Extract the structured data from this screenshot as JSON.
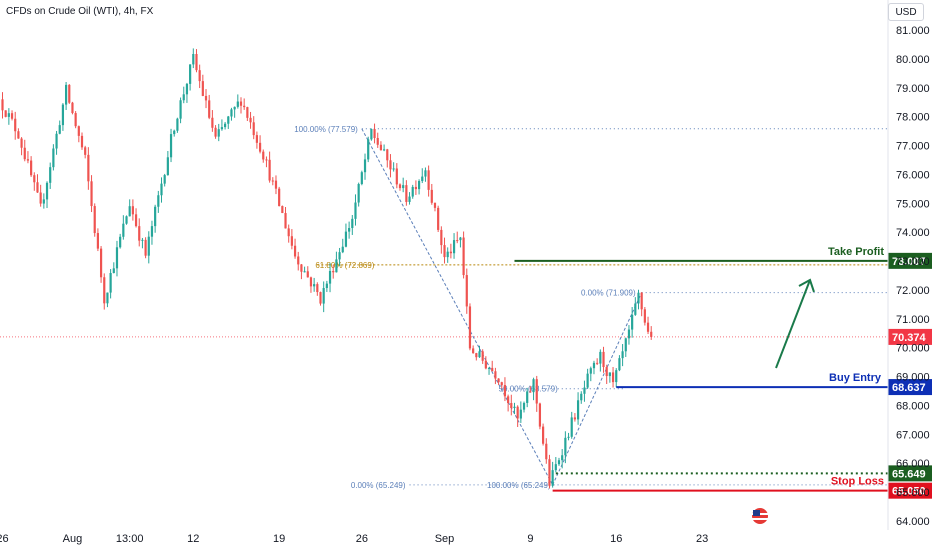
{
  "header": {
    "title": "CFDs on Crude Oil (WTI), 4h, FX",
    "currency": "USD"
  },
  "colors": {
    "up": "#26a69a",
    "down": "#ef5350",
    "take_profit": "#1b5e20",
    "buy_entry": "#0d2fb5",
    "stop_loss": "#e0101f",
    "fib": "#5b7fb9",
    "fib_618": "#b8860b",
    "current_price": "#f23645",
    "arrow": "#1a7a4a"
  },
  "chart_data": {
    "type": "candlestick",
    "title": "CFDs on Crude Oil (WTI), 4h, FX",
    "ylim": [
      64.0,
      81.0
    ],
    "y_ticks": [
      "81.000",
      "80.000",
      "79.000",
      "78.000",
      "77.000",
      "76.000",
      "75.000",
      "74.000",
      "73.000",
      "72.000",
      "71.000",
      "70.000",
      "69.000",
      "68.000",
      "67.000",
      "66.000",
      "65.000",
      "64.000"
    ],
    "x_ticks": [
      {
        "label": "26",
        "index": 0
      },
      {
        "label": "Aug",
        "index": 22
      },
      {
        "label": "13:00",
        "index": 40
      },
      {
        "label": "12",
        "index": 60
      },
      {
        "label": "19",
        "index": 87
      },
      {
        "label": "26",
        "index": 113
      },
      {
        "label": "Sep",
        "index": 139
      },
      {
        "label": "9",
        "index": 166
      },
      {
        "label": "16",
        "index": 193
      },
      {
        "label": "23",
        "index": 220
      }
    ],
    "candle_count": 232,
    "price_path": [
      [
        0,
        78.6
      ],
      [
        6,
        77.4
      ],
      [
        13,
        74.8
      ],
      [
        21,
        78.9
      ],
      [
        27,
        76.5
      ],
      [
        33,
        71.7
      ],
      [
        41,
        75.0
      ],
      [
        46,
        73.2
      ],
      [
        55,
        77.7
      ],
      [
        61,
        80.0
      ],
      [
        68,
        77.2
      ],
      [
        76,
        78.6
      ],
      [
        83,
        76.7
      ],
      [
        93,
        73.2
      ],
      [
        101,
        71.7
      ],
      [
        111,
        74.5
      ],
      [
        117,
        77.5
      ],
      [
        128,
        75.2
      ],
      [
        134,
        76.2
      ],
      [
        140,
        73.1
      ],
      [
        145,
        73.8
      ],
      [
        148,
        70.0
      ],
      [
        157,
        69.0
      ],
      [
        163,
        67.5
      ],
      [
        168,
        68.8
      ],
      [
        173,
        65.3
      ],
      [
        178,
        66.8
      ],
      [
        185,
        68.9
      ],
      [
        189,
        69.7
      ],
      [
        193,
        68.7
      ],
      [
        198,
        70.5
      ],
      [
        201,
        71.8
      ],
      [
        204,
        70.5
      ]
    ],
    "levels": {
      "take_profit": {
        "label": "Take Profit",
        "value": "73.007"
      },
      "buy_entry": {
        "label": "Buy Entry",
        "value": "68.637"
      },
      "stop_loss": {
        "label": "Stop Loss",
        "value": "65.050"
      },
      "support": {
        "value": "65.649"
      },
      "current": {
        "value": "70.374"
      }
    },
    "fib_labels": {
      "fib1_100": "100.00% (77.579)",
      "fib1_618": "61.80% (72.869)",
      "fib1_0": "0.00% (65.249)",
      "fib2_0": "0.00% (71.909)",
      "fib2_50": "50.00% (68.579)",
      "fib2_100": "100.00% (65.249)"
    }
  }
}
